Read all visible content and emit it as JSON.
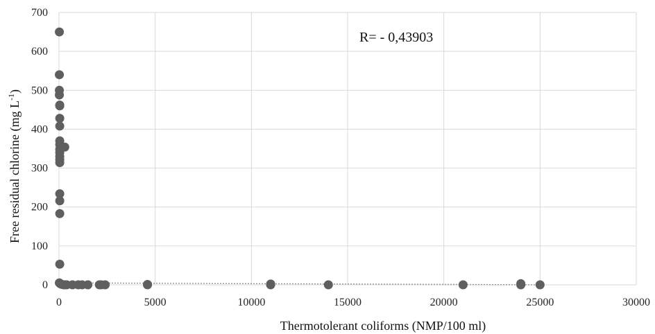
{
  "chart_data": {
    "type": "scatter",
    "xlabel": "Thermotolerant coliforms (NMP/100 ml)",
    "ylabel_main": "Free residual chlorine  (mg L",
    "ylabel_sup": "-1",
    "ylabel_end": ")",
    "annotation": "R= - 0,43903",
    "xlim": [
      0,
      30000
    ],
    "ylim": [
      0,
      700
    ],
    "xticks": [
      "0",
      "5000",
      "10000",
      "15000",
      "20000",
      "25000",
      "30000"
    ],
    "yticks": [
      "0",
      "100",
      "200",
      "300",
      "400",
      "500",
      "600",
      "700"
    ],
    "grid": true,
    "trendline": true,
    "colors": {
      "point": "#5f5f5f",
      "grid": "#d9d9d9",
      "trend": "#9a9a9a"
    },
    "series": [
      {
        "x": [
          20,
          20,
          20,
          20,
          40,
          40,
          40,
          40,
          40,
          40,
          40,
          40,
          40,
          40,
          40,
          40,
          40,
          40,
          300,
          40,
          20,
          60,
          100,
          150,
          250,
          300,
          400,
          700,
          1000,
          1200,
          1500,
          2100,
          2200,
          2400,
          4600,
          4600,
          11000,
          11000,
          14000,
          21000,
          24000,
          24000,
          25000
        ],
        "y": [
          650,
          540,
          500,
          488,
          462,
          460,
          428,
          408,
          370,
          360,
          348,
          340,
          330,
          322,
          314,
          234,
          216,
          183,
          354,
          53,
          5,
          3,
          2,
          1,
          0,
          0,
          0,
          0,
          0,
          0,
          0,
          0,
          0,
          0,
          0,
          1,
          0,
          2,
          0,
          0,
          0,
          3,
          0
        ]
      }
    ]
  }
}
